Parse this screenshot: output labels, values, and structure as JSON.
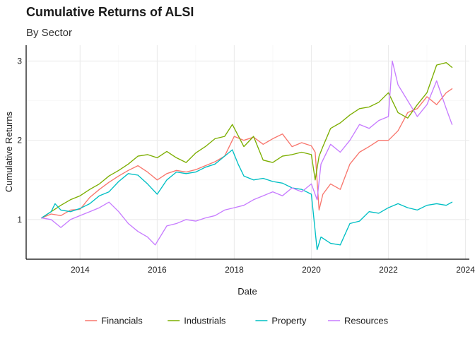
{
  "chart_data": {
    "type": "line",
    "title": "Cumulative Returns of ALSI",
    "subtitle": "By Sector",
    "xlabel": "Date",
    "ylabel": "Cumulative Returns",
    "xlim": [
      2012.6,
      2024.1
    ],
    "ylim": [
      0.5,
      3.2
    ],
    "x_ticks": [
      2014,
      2016,
      2018,
      2020,
      2022,
      2024
    ],
    "y_ticks": [
      1,
      2,
      3
    ],
    "grid": true,
    "legend_position": "bottom",
    "series": [
      {
        "name": "Financials",
        "color": "#F8766D",
        "x": [
          2013.0,
          2013.25,
          2013.5,
          2013.75,
          2014.0,
          2014.25,
          2014.5,
          2014.75,
          2015.0,
          2015.25,
          2015.5,
          2015.75,
          2016.0,
          2016.25,
          2016.5,
          2016.75,
          2017.0,
          2017.25,
          2017.5,
          2017.75,
          2018.0,
          2018.25,
          2018.5,
          2018.75,
          2019.0,
          2019.25,
          2019.5,
          2019.75,
          2020.0,
          2020.1,
          2020.2,
          2020.3,
          2020.5,
          2020.75,
          2021.0,
          2021.25,
          2021.5,
          2021.75,
          2022.0,
          2022.25,
          2022.5,
          2022.75,
          2023.0,
          2023.25,
          2023.5,
          2023.65
        ],
        "y": [
          1.02,
          1.07,
          1.05,
          1.12,
          1.13,
          1.28,
          1.38,
          1.47,
          1.55,
          1.62,
          1.68,
          1.6,
          1.5,
          1.58,
          1.62,
          1.6,
          1.63,
          1.68,
          1.73,
          1.8,
          2.05,
          2.0,
          2.04,
          1.95,
          2.02,
          2.08,
          1.92,
          1.97,
          1.93,
          1.85,
          1.12,
          1.32,
          1.45,
          1.38,
          1.7,
          1.85,
          1.92,
          2.0,
          2.0,
          2.12,
          2.35,
          2.4,
          2.55,
          2.45,
          2.6,
          2.65
        ]
      },
      {
        "name": "Industrials",
        "color": "#7CAE00",
        "x": [
          2013.0,
          2013.25,
          2013.5,
          2013.75,
          2014.0,
          2014.25,
          2014.5,
          2014.75,
          2015.0,
          2015.25,
          2015.5,
          2015.75,
          2016.0,
          2016.25,
          2016.5,
          2016.75,
          2017.0,
          2017.25,
          2017.5,
          2017.75,
          2017.95,
          2018.25,
          2018.5,
          2018.75,
          2019.0,
          2019.25,
          2019.5,
          2019.75,
          2020.0,
          2020.1,
          2020.2,
          2020.3,
          2020.5,
          2020.75,
          2021.0,
          2021.25,
          2021.5,
          2021.75,
          2022.0,
          2022.25,
          2022.5,
          2022.75,
          2023.0,
          2023.25,
          2023.5,
          2023.65
        ],
        "y": [
          1.02,
          1.1,
          1.18,
          1.25,
          1.3,
          1.38,
          1.45,
          1.55,
          1.62,
          1.7,
          1.8,
          1.82,
          1.78,
          1.86,
          1.78,
          1.72,
          1.84,
          1.92,
          2.02,
          2.05,
          2.2,
          1.92,
          2.05,
          1.75,
          1.72,
          1.8,
          1.82,
          1.85,
          1.82,
          1.5,
          1.8,
          1.92,
          2.15,
          2.22,
          2.32,
          2.4,
          2.42,
          2.48,
          2.6,
          2.35,
          2.28,
          2.45,
          2.6,
          2.95,
          2.98,
          2.92
        ]
      },
      {
        "name": "Property",
        "color": "#00BFC4",
        "x": [
          2013.0,
          2013.25,
          2013.35,
          2013.5,
          2013.75,
          2014.0,
          2014.25,
          2014.5,
          2014.75,
          2015.0,
          2015.25,
          2015.5,
          2015.75,
          2016.0,
          2016.25,
          2016.5,
          2016.75,
          2017.0,
          2017.25,
          2017.5,
          2017.75,
          2017.95,
          2018.1,
          2018.25,
          2018.5,
          2018.75,
          2019.0,
          2019.25,
          2019.5,
          2019.75,
          2020.0,
          2020.15,
          2020.25,
          2020.5,
          2020.75,
          2021.0,
          2021.25,
          2021.5,
          2021.75,
          2022.0,
          2022.25,
          2022.5,
          2022.75,
          2023.0,
          2023.25,
          2023.5,
          2023.65
        ],
        "y": [
          1.02,
          1.1,
          1.2,
          1.12,
          1.1,
          1.14,
          1.2,
          1.3,
          1.35,
          1.48,
          1.58,
          1.56,
          1.45,
          1.32,
          1.5,
          1.6,
          1.58,
          1.6,
          1.66,
          1.7,
          1.8,
          1.88,
          1.7,
          1.55,
          1.5,
          1.52,
          1.48,
          1.46,
          1.4,
          1.38,
          1.32,
          0.62,
          0.78,
          0.7,
          0.68,
          0.95,
          0.98,
          1.1,
          1.08,
          1.15,
          1.2,
          1.15,
          1.12,
          1.18,
          1.2,
          1.18,
          1.22
        ]
      },
      {
        "name": "Resources",
        "color": "#C77CFF",
        "x": [
          2013.0,
          2013.25,
          2013.5,
          2013.75,
          2014.0,
          2014.25,
          2014.5,
          2014.75,
          2015.0,
          2015.25,
          2015.5,
          2015.75,
          2015.95,
          2016.25,
          2016.5,
          2016.75,
          2017.0,
          2017.25,
          2017.5,
          2017.75,
          2018.0,
          2018.25,
          2018.5,
          2018.75,
          2019.0,
          2019.25,
          2019.5,
          2019.75,
          2020.0,
          2020.15,
          2020.25,
          2020.5,
          2020.75,
          2021.0,
          2021.25,
          2021.5,
          2021.75,
          2022.0,
          2022.1,
          2022.25,
          2022.5,
          2022.75,
          2023.0,
          2023.25,
          2023.5,
          2023.65
        ],
        "y": [
          1.02,
          1.0,
          0.9,
          1.0,
          1.05,
          1.1,
          1.15,
          1.22,
          1.1,
          0.95,
          0.85,
          0.78,
          0.68,
          0.92,
          0.95,
          1.0,
          0.98,
          1.02,
          1.05,
          1.12,
          1.15,
          1.18,
          1.25,
          1.3,
          1.35,
          1.3,
          1.4,
          1.35,
          1.45,
          1.25,
          1.7,
          1.95,
          1.85,
          2.0,
          2.2,
          2.15,
          2.25,
          2.3,
          3.0,
          2.7,
          2.5,
          2.3,
          2.45,
          2.75,
          2.4,
          2.2
        ]
      }
    ]
  }
}
